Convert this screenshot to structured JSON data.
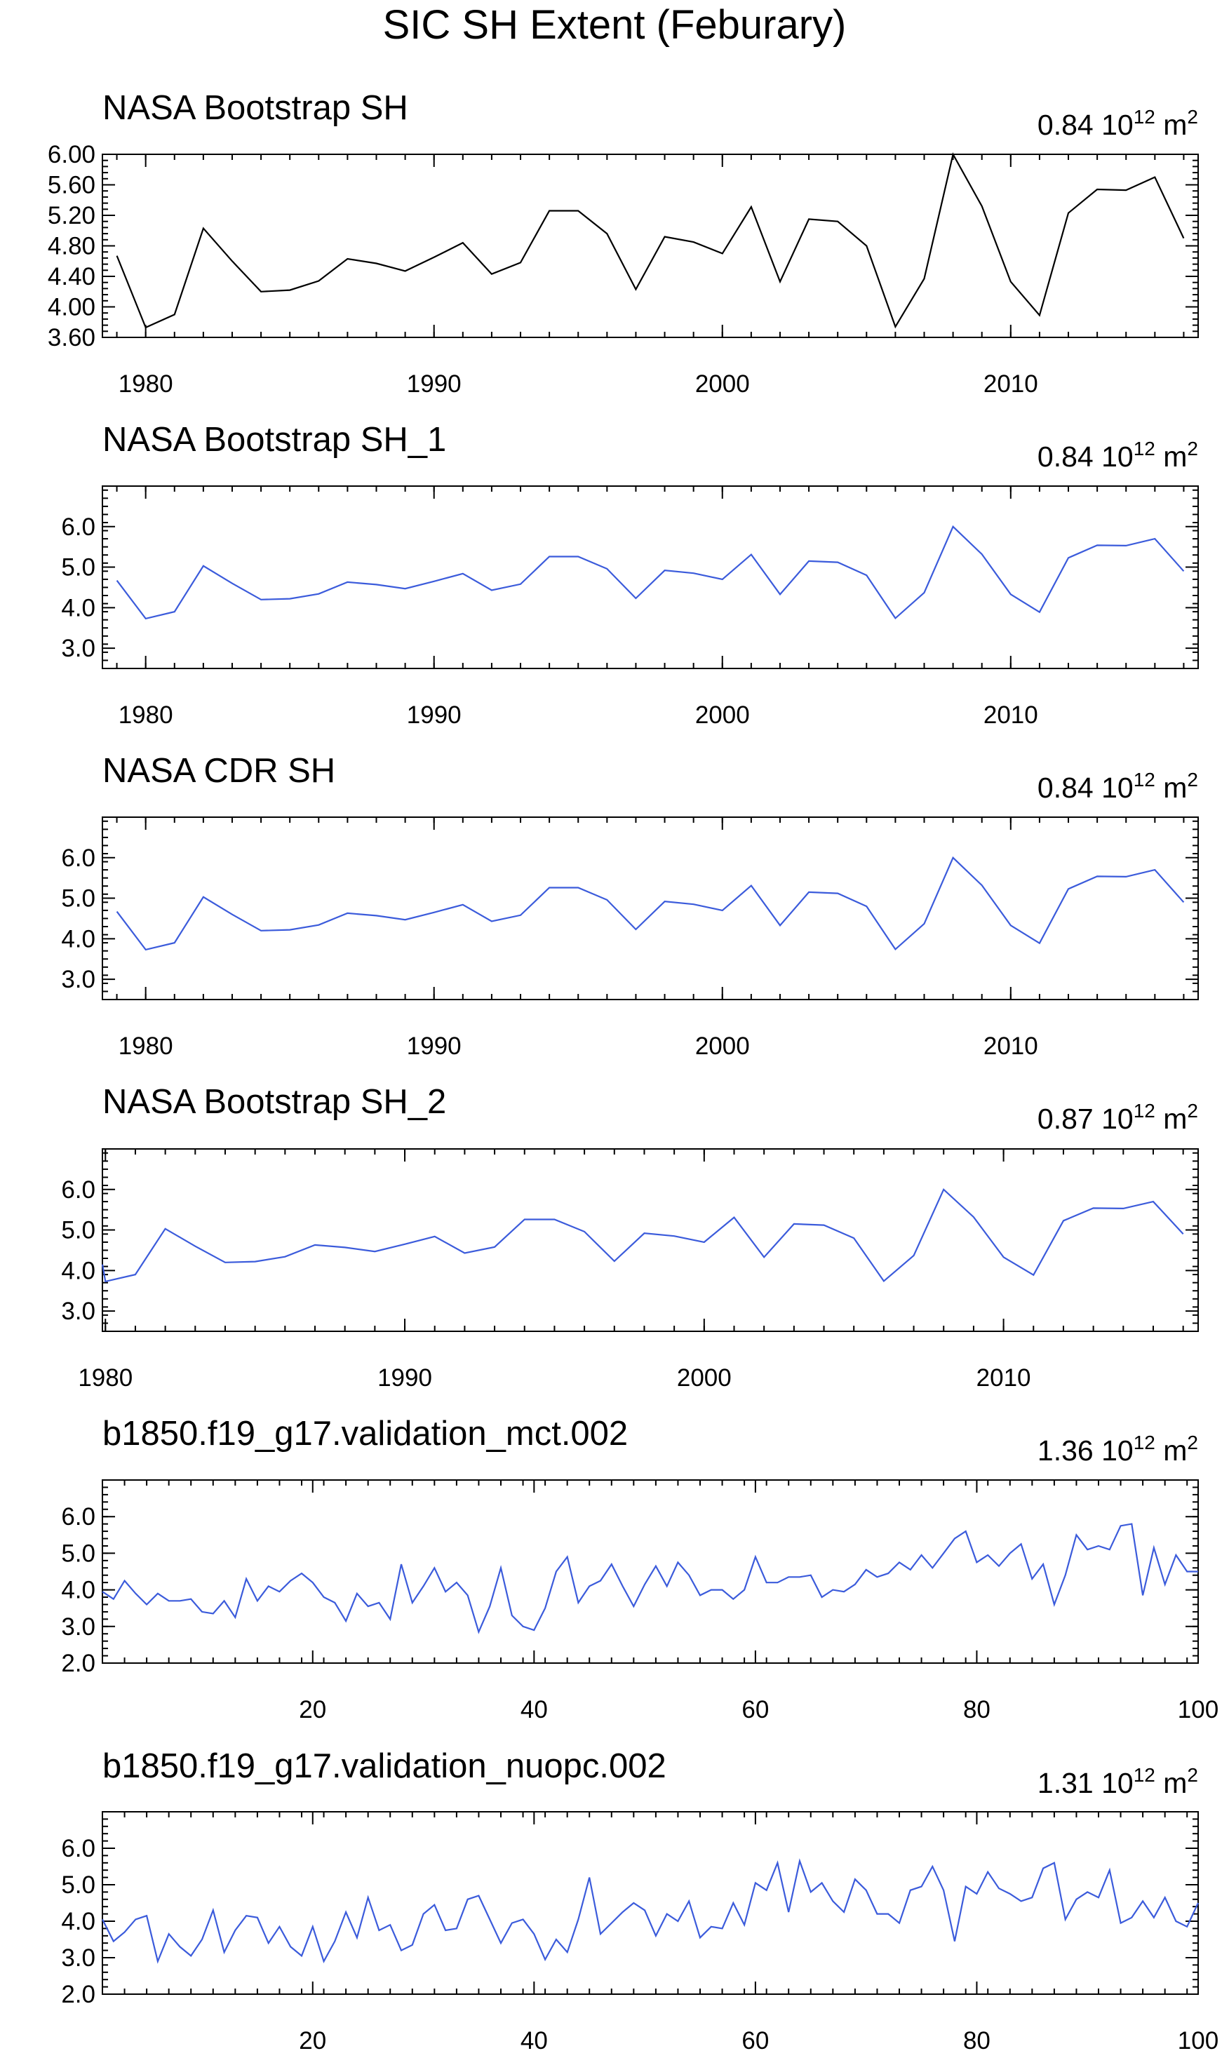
{
  "figure": {
    "title": "SIC SH Extent (Feburary)"
  },
  "colors": {
    "black": "#000000",
    "blue": "#3b5bdb"
  },
  "chart_data": [
    {
      "type": "line",
      "title": "NASA Bootstrap SH",
      "stat_value": "0.84",
      "stat_unit": "10",
      "stat_exp": "12",
      "stat_m": "m",
      "stat_m_exp": "2",
      "color": "#000000",
      "xlim": [
        1978.5,
        2016.5
      ],
      "ylim": [
        3.6,
        6.0
      ],
      "x_ticks": [
        1980,
        1990,
        2000,
        2010
      ],
      "x_tick_labels": [
        "1980",
        "1990",
        "2000",
        "2010"
      ],
      "y_ticks": [
        3.6,
        4.0,
        4.4,
        4.8,
        5.2,
        5.6,
        6.0
      ],
      "y_tick_labels": [
        "3.60",
        "4.00",
        "4.40",
        "4.80",
        "5.20",
        "5.60",
        "6.00"
      ],
      "y_minor_step": 0.08,
      "x": [
        1979,
        1980,
        1981,
        1982,
        1983,
        1984,
        1985,
        1986,
        1987,
        1988,
        1989,
        1990,
        1991,
        1992,
        1993,
        1994,
        1995,
        1996,
        1997,
        1998,
        1999,
        2000,
        2001,
        2002,
        2003,
        2004,
        2005,
        2006,
        2007,
        2008,
        2009,
        2010,
        2011,
        2012,
        2013,
        2014,
        2015,
        2016
      ],
      "values": [
        4.67,
        3.73,
        3.9,
        5.03,
        4.6,
        4.2,
        4.22,
        4.34,
        4.63,
        4.57,
        4.47,
        4.65,
        4.84,
        4.43,
        4.58,
        5.26,
        5.26,
        4.96,
        4.23,
        4.92,
        4.85,
        4.7,
        5.31,
        4.33,
        5.15,
        5.12,
        4.8,
        3.74,
        4.37,
        6.0,
        5.32,
        4.33,
        3.89,
        5.23,
        5.54,
        5.53,
        5.7,
        4.9
      ]
    },
    {
      "type": "line",
      "title": "NASA Bootstrap SH_1",
      "stat_value": "0.84",
      "stat_unit": "10",
      "stat_exp": "12",
      "stat_m": "m",
      "stat_m_exp": "2",
      "color": "#3b5bdb",
      "xlim": [
        1978.5,
        2016.5
      ],
      "ylim": [
        2.5,
        7.0
      ],
      "x_ticks": [
        1980,
        1990,
        2000,
        2010
      ],
      "x_tick_labels": [
        "1980",
        "1990",
        "2000",
        "2010"
      ],
      "y_ticks": [
        3.0,
        4.0,
        5.0,
        6.0
      ],
      "y_tick_labels": [
        "3.0",
        "4.0",
        "5.0",
        "6.0"
      ],
      "y_minor_step": 0.2,
      "x": [
        1979,
        1980,
        1981,
        1982,
        1983,
        1984,
        1985,
        1986,
        1987,
        1988,
        1989,
        1990,
        1991,
        1992,
        1993,
        1994,
        1995,
        1996,
        1997,
        1998,
        1999,
        2000,
        2001,
        2002,
        2003,
        2004,
        2005,
        2006,
        2007,
        2008,
        2009,
        2010,
        2011,
        2012,
        2013,
        2014,
        2015,
        2016
      ],
      "values": [
        4.67,
        3.73,
        3.9,
        5.03,
        4.6,
        4.2,
        4.22,
        4.34,
        4.63,
        4.57,
        4.47,
        4.65,
        4.84,
        4.43,
        4.58,
        5.26,
        5.26,
        4.96,
        4.23,
        4.92,
        4.85,
        4.7,
        5.31,
        4.33,
        5.15,
        5.12,
        4.8,
        3.74,
        4.37,
        6.0,
        5.32,
        4.33,
        3.89,
        5.23,
        5.54,
        5.53,
        5.7,
        4.9
      ]
    },
    {
      "type": "line",
      "title": "NASA CDR SH",
      "stat_value": "0.84",
      "stat_unit": "10",
      "stat_exp": "12",
      "stat_m": "m",
      "stat_m_exp": "2",
      "color": "#3b5bdb",
      "xlim": [
        1978.5,
        2016.5
      ],
      "ylim": [
        2.5,
        7.0
      ],
      "x_ticks": [
        1980,
        1990,
        2000,
        2010
      ],
      "x_tick_labels": [
        "1980",
        "1990",
        "2000",
        "2010"
      ],
      "y_ticks": [
        3.0,
        4.0,
        5.0,
        6.0
      ],
      "y_tick_labels": [
        "3.0",
        "4.0",
        "5.0",
        "6.0"
      ],
      "y_minor_step": 0.2,
      "x": [
        1979,
        1980,
        1981,
        1982,
        1983,
        1984,
        1985,
        1986,
        1987,
        1988,
        1989,
        1990,
        1991,
        1992,
        1993,
        1994,
        1995,
        1996,
        1997,
        1998,
        1999,
        2000,
        2001,
        2002,
        2003,
        2004,
        2005,
        2006,
        2007,
        2008,
        2009,
        2010,
        2011,
        2012,
        2013,
        2014,
        2015,
        2016
      ],
      "values": [
        4.67,
        3.73,
        3.9,
        5.03,
        4.6,
        4.2,
        4.22,
        4.34,
        4.63,
        4.57,
        4.47,
        4.65,
        4.84,
        4.43,
        4.58,
        5.26,
        5.26,
        4.96,
        4.23,
        4.92,
        4.85,
        4.7,
        5.31,
        4.33,
        5.15,
        5.12,
        4.8,
        3.74,
        4.37,
        6.0,
        5.32,
        4.33,
        3.89,
        5.23,
        5.54,
        5.53,
        5.7,
        4.9
      ]
    },
    {
      "type": "line",
      "title": "NASA Bootstrap SH_2",
      "stat_value": "0.87",
      "stat_unit": "10",
      "stat_exp": "12",
      "stat_m": "m",
      "stat_m_exp": "2",
      "color": "#3b5bdb",
      "xlim": [
        1979.9,
        2016.5
      ],
      "ylim": [
        2.5,
        7.0
      ],
      "x_ticks": [
        1980,
        1990,
        2000,
        2010
      ],
      "x_tick_labels": [
        "1980",
        "1990",
        "2000",
        "2010"
      ],
      "y_ticks": [
        3.0,
        4.0,
        5.0,
        6.0
      ],
      "y_tick_labels": [
        "3.0",
        "4.0",
        "5.0",
        "6.0"
      ],
      "y_minor_step": 0.2,
      "x": [
        1979.9,
        1980,
        1981,
        1982,
        1983,
        1984,
        1985,
        1986,
        1987,
        1988,
        1989,
        1990,
        1991,
        1992,
        1993,
        1994,
        1995,
        1996,
        1997,
        1998,
        1999,
        2000,
        2001,
        2002,
        2003,
        2004,
        2005,
        2006,
        2007,
        2008,
        2009,
        2010,
        2011,
        2012,
        2013,
        2014,
        2015,
        2016
      ],
      "values": [
        4.15,
        3.73,
        3.9,
        5.03,
        4.6,
        4.2,
        4.22,
        4.34,
        4.63,
        4.57,
        4.47,
        4.65,
        4.84,
        4.43,
        4.58,
        5.26,
        5.26,
        4.96,
        4.23,
        4.92,
        4.85,
        4.7,
        5.31,
        4.33,
        5.15,
        5.12,
        4.8,
        3.74,
        4.37,
        6.0,
        5.32,
        4.33,
        3.89,
        5.23,
        5.54,
        5.53,
        5.7,
        4.9
      ]
    },
    {
      "type": "line",
      "title": "b1850.f19_g17.validation_mct.002",
      "stat_value": "1.36",
      "stat_unit": "10",
      "stat_exp": "12",
      "stat_m": "m",
      "stat_m_exp": "2",
      "color": "#3b5bdb",
      "xlim": [
        1,
        100
      ],
      "ylim": [
        2.0,
        7.0
      ],
      "x_ticks": [
        20,
        40,
        60,
        80,
        100
      ],
      "x_tick_labels": [
        "20",
        "40",
        "60",
        "80",
        "100"
      ],
      "y_ticks": [
        2.0,
        3.0,
        4.0,
        5.0,
        6.0
      ],
      "y_tick_labels": [
        "2.0",
        "3.0",
        "4.0",
        "5.0",
        "6.0"
      ],
      "y_minor_step": 0.2,
      "x": [
        1,
        2,
        3,
        4,
        5,
        6,
        7,
        8,
        9,
        10,
        11,
        12,
        13,
        14,
        15,
        16,
        17,
        18,
        19,
        20,
        21,
        22,
        23,
        24,
        25,
        26,
        27,
        28,
        29,
        30,
        31,
        32,
        33,
        34,
        35,
        36,
        37,
        38,
        39,
        40,
        41,
        42,
        43,
        44,
        45,
        46,
        47,
        48,
        49,
        50,
        51,
        52,
        53,
        54,
        55,
        56,
        57,
        58,
        59,
        60,
        61,
        62,
        63,
        64,
        65,
        66,
        67,
        68,
        69,
        70,
        71,
        72,
        73,
        74,
        75,
        76,
        77,
        78,
        79,
        80,
        81,
        82,
        83,
        84,
        85,
        86,
        87,
        88,
        89,
        90,
        91,
        92,
        93,
        94,
        95,
        96,
        97,
        98,
        99,
        100
      ],
      "values": [
        3.95,
        3.75,
        4.25,
        3.9,
        3.6,
        3.9,
        3.7,
        3.7,
        3.75,
        3.4,
        3.35,
        3.7,
        3.25,
        4.3,
        3.7,
        4.1,
        3.95,
        4.25,
        4.45,
        4.2,
        3.8,
        3.65,
        3.15,
        3.9,
        3.55,
        3.65,
        3.2,
        4.7,
        3.65,
        4.1,
        4.6,
        3.95,
        4.2,
        3.85,
        2.85,
        3.55,
        4.6,
        3.3,
        3.0,
        2.9,
        3.5,
        4.5,
        4.9,
        3.65,
        4.1,
        4.25,
        4.7,
        4.1,
        3.55,
        4.15,
        4.65,
        4.1,
        4.75,
        4.4,
        3.85,
        4.0,
        4.0,
        3.75,
        4.0,
        4.9,
        4.2,
        4.2,
        4.35,
        4.35,
        4.4,
        3.8,
        4.0,
        3.95,
        4.15,
        4.55,
        4.35,
        4.45,
        4.75,
        4.55,
        4.95,
        4.6,
        5.0,
        5.4,
        5.6,
        4.75,
        4.95,
        4.65,
        5.0,
        5.25,
        4.3,
        4.7,
        3.6,
        4.4,
        5.5,
        5.1,
        5.2,
        5.1,
        5.75,
        5.8,
        3.85,
        5.15,
        4.15,
        4.95,
        4.5,
        4.5
      ]
    },
    {
      "type": "line",
      "title": "b1850.f19_g17.validation_nuopc.002",
      "stat_value": "1.31",
      "stat_unit": "10",
      "stat_exp": "12",
      "stat_m": "m",
      "stat_m_exp": "2",
      "color": "#3b5bdb",
      "xlim": [
        1,
        100
      ],
      "ylim": [
        2.0,
        7.0
      ],
      "x_ticks": [
        20,
        40,
        60,
        80,
        100
      ],
      "x_tick_labels": [
        "20",
        "40",
        "60",
        "80",
        "100"
      ],
      "y_ticks": [
        2.0,
        3.0,
        4.0,
        5.0,
        6.0
      ],
      "y_tick_labels": [
        "2.0",
        "3.0",
        "4.0",
        "5.0",
        "6.0"
      ],
      "y_minor_step": 0.2,
      "x": [
        1,
        2,
        3,
        4,
        5,
        6,
        7,
        8,
        9,
        10,
        11,
        12,
        13,
        14,
        15,
        16,
        17,
        18,
        19,
        20,
        21,
        22,
        23,
        24,
        25,
        26,
        27,
        28,
        29,
        30,
        31,
        32,
        33,
        34,
        35,
        36,
        37,
        38,
        39,
        40,
        41,
        42,
        43,
        44,
        45,
        46,
        47,
        48,
        49,
        50,
        51,
        52,
        53,
        54,
        55,
        56,
        57,
        58,
        59,
        60,
        61,
        62,
        63,
        64,
        65,
        66,
        67,
        68,
        69,
        70,
        71,
        72,
        73,
        74,
        75,
        76,
        77,
        78,
        79,
        80,
        81,
        82,
        83,
        84,
        85,
        86,
        87,
        88,
        89,
        90,
        91,
        92,
        93,
        94,
        95,
        96,
        97,
        98,
        99,
        100
      ],
      "values": [
        4.05,
        3.45,
        3.7,
        4.05,
        4.15,
        2.9,
        3.65,
        3.3,
        3.05,
        3.5,
        4.3,
        3.15,
        3.75,
        4.15,
        4.1,
        3.4,
        3.85,
        3.3,
        3.05,
        3.85,
        2.9,
        3.45,
        4.25,
        3.55,
        4.65,
        3.75,
        3.9,
        3.2,
        3.35,
        4.2,
        4.45,
        3.75,
        3.8,
        4.6,
        4.7,
        4.05,
        3.4,
        3.95,
        4.05,
        3.65,
        2.95,
        3.5,
        3.15,
        4.05,
        5.2,
        3.65,
        3.95,
        4.25,
        4.5,
        4.3,
        3.6,
        4.2,
        4.0,
        4.55,
        3.55,
        3.85,
        3.8,
        4.5,
        3.9,
        5.05,
        4.85,
        5.6,
        4.25,
        5.65,
        4.8,
        5.05,
        4.55,
        4.25,
        5.15,
        4.85,
        4.2,
        4.2,
        3.95,
        4.85,
        4.95,
        5.5,
        4.85,
        3.45,
        4.95,
        4.75,
        5.35,
        4.9,
        4.75,
        4.55,
        4.65,
        5.45,
        5.6,
        4.05,
        4.6,
        4.8,
        4.65,
        5.4,
        3.95,
        4.1,
        4.55,
        4.1,
        4.65,
        4.0,
        3.85,
        4.5
      ]
    }
  ]
}
